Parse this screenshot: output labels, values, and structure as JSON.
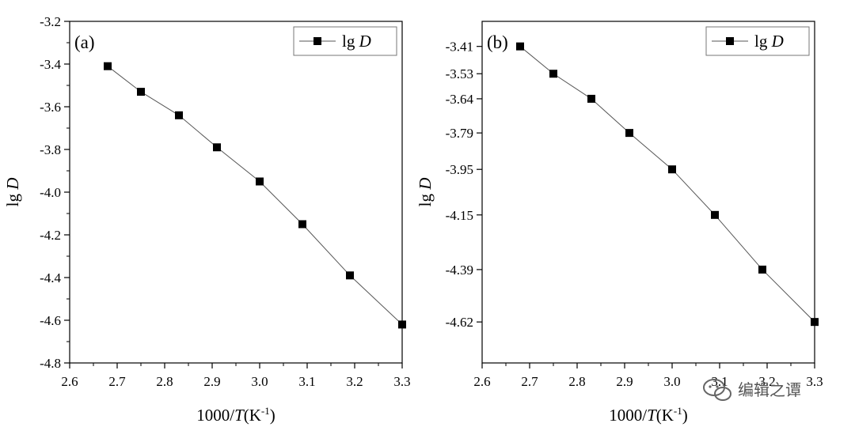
{
  "chart_data": [
    {
      "type": "line",
      "panel_label": "(a)",
      "legend": {
        "series_name": "lg",
        "series_var": "D",
        "placement": "top-right"
      },
      "xlabel": {
        "prefix": "1000/",
        "var": "T",
        "unit_open": "(K",
        "unit_sup": "-1",
        "unit_close": ")"
      },
      "ylabel": {
        "prefix": "lg ",
        "var": "D"
      },
      "xlim": [
        2.6,
        3.3
      ],
      "ylim": [
        -4.8,
        -3.2
      ],
      "x_ticks": [
        2.6,
        2.7,
        2.8,
        2.9,
        3.0,
        3.1,
        3.2,
        3.3
      ],
      "x_tick_labels": [
        "2.6",
        "2.7",
        "2.8",
        "2.9",
        "3.0",
        "3.1",
        "3.2",
        "3.3"
      ],
      "y_ticks": [
        -3.2,
        -3.4,
        -3.6,
        -3.8,
        -4.0,
        -4.2,
        -4.4,
        -4.6,
        -4.8
      ],
      "y_tick_labels": [
        "-3.2",
        "-3.4",
        "-3.6",
        "-3.8",
        "-4.0",
        "-4.2",
        "-4.4",
        "-4.6",
        "-4.8"
      ],
      "series": [
        {
          "name": "lg D",
          "x": [
            2.68,
            2.75,
            2.83,
            2.91,
            3.0,
            3.09,
            3.19,
            3.3
          ],
          "y": [
            -3.41,
            -3.53,
            -3.64,
            -3.79,
            -3.95,
            -4.15,
            -4.39,
            -4.62
          ]
        }
      ]
    },
    {
      "type": "line",
      "panel_label": "(b)",
      "legend": {
        "series_name": "lg",
        "series_var": "D",
        "placement": "top-right"
      },
      "xlabel": {
        "prefix": "1000/",
        "var": "T",
        "unit_open": "(K",
        "unit_sup": "-1",
        "unit_close": ")"
      },
      "ylabel": {
        "prefix": "lg ",
        "var": "D"
      },
      "xlim": [
        2.6,
        3.3
      ],
      "ylim": [
        -4.8,
        -3.3
      ],
      "x_ticks": [
        2.6,
        2.7,
        2.8,
        2.9,
        3.0,
        3.1,
        3.2,
        3.3
      ],
      "x_tick_labels": [
        "2.6",
        "2.7",
        "2.8",
        "2.9",
        "3.0",
        "3.1",
        "3.2",
        "3.3"
      ],
      "y_ticks": [
        -3.41,
        -3.53,
        -3.64,
        -3.79,
        -3.95,
        -4.15,
        -4.39,
        -4.62
      ],
      "y_tick_labels": [
        "-3.41",
        "-3.53",
        "-3.64",
        "-3.79",
        "-3.95",
        "-4.15",
        "-4.39",
        "-4.62"
      ],
      "series": [
        {
          "name": "lg D",
          "x": [
            2.68,
            2.75,
            2.83,
            2.91,
            3.0,
            3.09,
            3.19,
            3.3
          ],
          "y": [
            -3.41,
            -3.53,
            -3.64,
            -3.79,
            -3.95,
            -4.15,
            -4.39,
            -4.62
          ]
        }
      ]
    }
  ],
  "watermark": {
    "text": "编辑之谭"
  },
  "colors": {
    "axis": "#000000",
    "line": "#555555",
    "marker": "#000000",
    "legend_border": "#777777"
  }
}
